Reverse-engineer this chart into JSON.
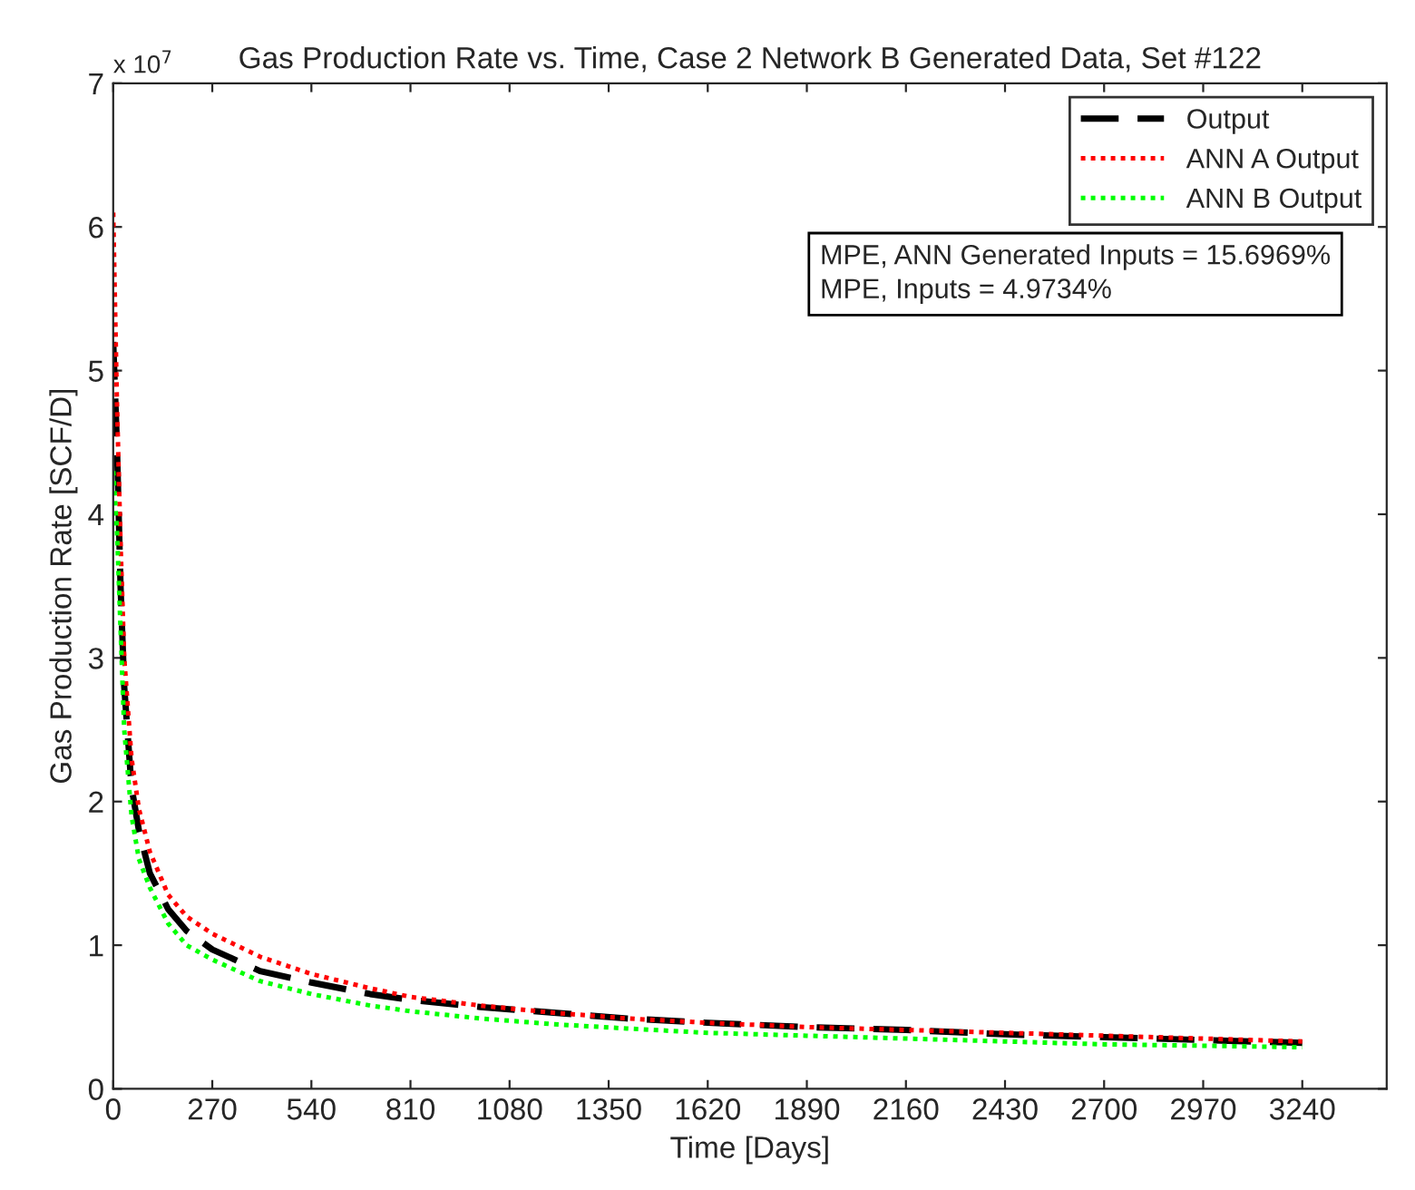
{
  "chart_data": {
    "type": "line",
    "title": "Gas Production Rate vs. Time, Case 2 Network B Generated Data, Set #122",
    "xlabel": "Time [Days]",
    "ylabel": "Gas Production Rate [SCF/D]",
    "xlim": [
      0,
      3470
    ],
    "xticks": [
      0,
      270,
      540,
      810,
      1080,
      1350,
      1620,
      1890,
      2160,
      2430,
      2700,
      2970,
      3240
    ],
    "ylim": [
      0,
      7
    ],
    "yticks": [
      0,
      1,
      2,
      3,
      4,
      5,
      6,
      7
    ],
    "grid": false,
    "legend": "top right",
    "annotations": [
      "x 10$^{7}$",
      "MPE, ANN Generated Inputs = 15.6969%\nMPE, Inputs = 4.9734%"
    ],
    "series": [
      {
        "name": "Output",
        "color": "#000000",
        "line_style": "dashed",
        "x": [
          0,
          10,
          20,
          30,
          50,
          70,
          100,
          150,
          200,
          270,
          400,
          540,
          700,
          810,
          1000,
          1200,
          1400,
          1620,
          1890,
          2160,
          2430,
          2700,
          2970,
          3240
        ],
        "values": [
          5.2,
          4.5,
          3.5,
          2.8,
          2.1,
          1.8,
          1.5,
          1.25,
          1.1,
          0.97,
          0.82,
          0.74,
          0.66,
          0.62,
          0.57,
          0.53,
          0.49,
          0.46,
          0.43,
          0.41,
          0.38,
          0.36,
          0.34,
          0.32
        ]
      },
      {
        "name": "ANN A Output",
        "color": "#ff0000",
        "line_style": "dotted",
        "x": [
          0,
          10,
          20,
          30,
          50,
          70,
          100,
          150,
          200,
          270,
          400,
          540,
          700,
          810,
          1000,
          1200,
          1400,
          1620,
          1890,
          2160,
          2430,
          2700,
          2970,
          3240
        ],
        "values": [
          6.1,
          4.8,
          3.8,
          3.0,
          2.3,
          1.95,
          1.65,
          1.35,
          1.2,
          1.08,
          0.92,
          0.8,
          0.7,
          0.64,
          0.58,
          0.53,
          0.49,
          0.46,
          0.43,
          0.41,
          0.39,
          0.37,
          0.35,
          0.33
        ]
      },
      {
        "name": "ANN B Output",
        "color": "#00ff00",
        "line_style": "dotted",
        "x": [
          0,
          10,
          20,
          30,
          50,
          70,
          100,
          150,
          200,
          270,
          400,
          540,
          700,
          810,
          1000,
          1200,
          1400,
          1620,
          1890,
          2160,
          2430,
          2700,
          2970,
          3240
        ],
        "values": [
          4.3,
          3.9,
          3.2,
          2.5,
          1.9,
          1.6,
          1.4,
          1.15,
          1.0,
          0.9,
          0.75,
          0.66,
          0.58,
          0.54,
          0.49,
          0.45,
          0.42,
          0.39,
          0.37,
          0.35,
          0.33,
          0.31,
          0.3,
          0.29
        ]
      }
    ]
  }
}
